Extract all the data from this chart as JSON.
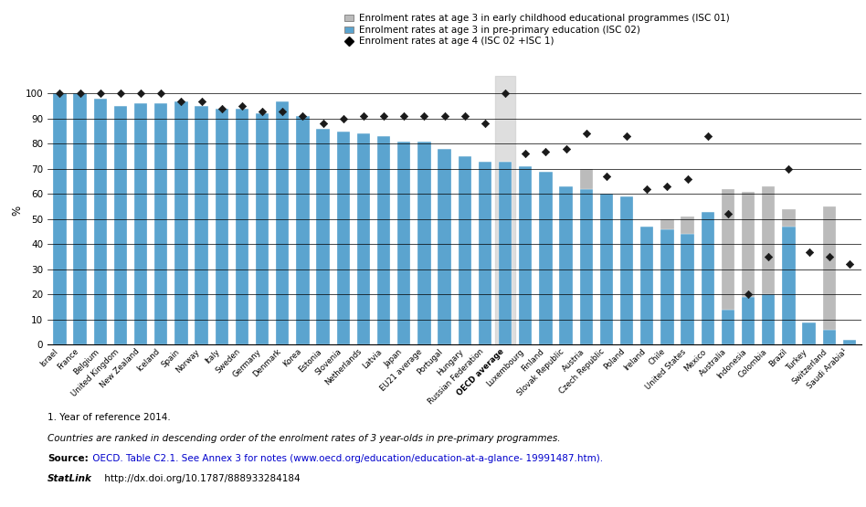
{
  "countries": [
    "Israel",
    "France",
    "Belgium",
    "United Kingdom",
    "New Zealand",
    "Iceland",
    "Spain",
    "Norway",
    "Italy",
    "Sweden",
    "Germany",
    "Denmark",
    "Korea",
    "Estonia",
    "Slovenia",
    "Netherlands",
    "Latvia",
    "Japan",
    "EU21 average",
    "Portugal",
    "Hungary",
    "Russian Federation",
    "OECD average",
    "Luxembourg",
    "Finland",
    "Slovak Republic",
    "Austria",
    "Czech Republic",
    "Poland",
    "Ireland",
    "Chile",
    "United States",
    "Mexico",
    "Australia",
    "Indonesia",
    "Colombia",
    "Brazil",
    "Turkey",
    "Switzerland",
    "Saudi Arabia¹"
  ],
  "isc02_blue": [
    100,
    100,
    98,
    95,
    96,
    96,
    97,
    95,
    94,
    94,
    92,
    97,
    91,
    86,
    85,
    84,
    83,
    81,
    81,
    78,
    75,
    73,
    73,
    71,
    69,
    63,
    62,
    60,
    59,
    47,
    46,
    44,
    53,
    14,
    19,
    20,
    47,
    9,
    6,
    2
  ],
  "isc01_grey": [
    0,
    0,
    0,
    0,
    0,
    0,
    0,
    0,
    0,
    0,
    0,
    0,
    0,
    0,
    0,
    0,
    0,
    0,
    0,
    0,
    0,
    0,
    0,
    0,
    0,
    0,
    8,
    0,
    0,
    0,
    4,
    7,
    0,
    48,
    42,
    43,
    7,
    0,
    49,
    0
  ],
  "age4_diamond": [
    100,
    100,
    100,
    100,
    100,
    100,
    97,
    97,
    94,
    95,
    93,
    93,
    91,
    88,
    90,
    91,
    91,
    91,
    91,
    91,
    91,
    88,
    100,
    76,
    77,
    78,
    84,
    67,
    83,
    62,
    63,
    66,
    83,
    52,
    20,
    35,
    70,
    37,
    35,
    32
  ],
  "oecd_avg_index": 22,
  "bar_blue": "#5BA4CF",
  "bar_grey": "#BBBBBB",
  "diamond_color": "#1a1a1a",
  "oecd_bg_color": "#d0d0d0",
  "ylabel": "%",
  "ylim": [
    0,
    110
  ],
  "yticks": [
    0,
    10,
    20,
    30,
    40,
    50,
    60,
    70,
    80,
    90,
    100
  ],
  "legend_labels": [
    "Enrolment rates at age 3 in early childhood educational programmes (ISC 01)",
    "Enrolment rates at age 3 in pre-primary education (ISC 02)",
    "Enrolment rates at age 4 (ISC 02 +ISC 1)"
  ],
  "footnote1": "1. Year of reference 2014.",
  "footnote2": "Countries are ranked in descending order of the enrolment rates of 3 year-olds in pre-primary programmes.",
  "source_bold": "Source:",
  "source_rest": " OECD. Table C2.1. See Annex 3 for notes (www.oecd.org/education/education-at-a-glance- 19991487.htm).",
  "statlink_text": "StatLink   ≡  http://dx.doi.org/10.1787/888933284184"
}
